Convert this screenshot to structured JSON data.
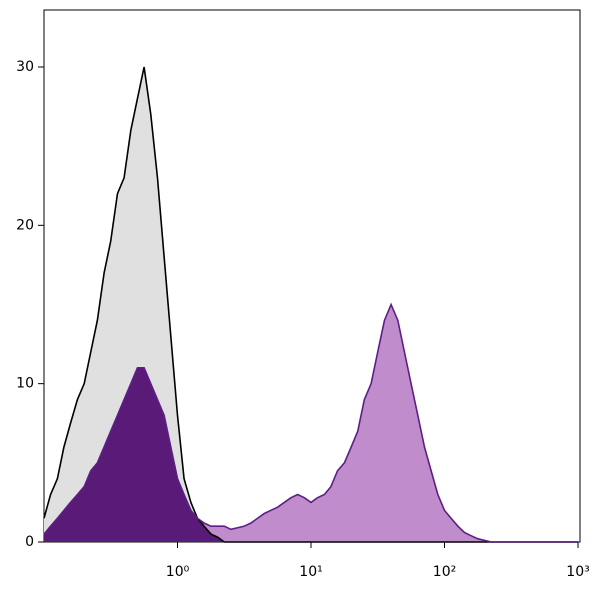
{
  "chart_data": {
    "type": "histogram-overlay",
    "xscale": "log",
    "x": [
      0.1,
      0.112,
      0.126,
      0.141,
      0.158,
      0.178,
      0.2,
      0.224,
      0.251,
      0.282,
      0.316,
      0.355,
      0.398,
      0.447,
      0.501,
      0.562,
      0.631,
      0.708,
      0.794,
      0.891,
      1,
      1.12,
      1.26,
      1.41,
      1.58,
      1.78,
      2,
      2.24,
      2.51,
      2.82,
      3.16,
      3.55,
      3.98,
      4.47,
      5.01,
      5.62,
      6.31,
      7.08,
      7.94,
      8.91,
      10,
      11.2,
      12.6,
      14.1,
      15.8,
      17.8,
      20,
      22.4,
      25.1,
      28.2,
      31.6,
      35.5,
      39.8,
      44.7,
      50.1,
      56.2,
      63.1,
      70.8,
      79.4,
      89.1,
      100,
      112,
      126,
      141,
      158,
      178,
      200,
      224,
      251,
      282,
      316,
      355,
      398,
      447,
      501,
      562,
      631,
      708,
      794,
      891,
      1000
    ],
    "series": [
      {
        "color": "#000000",
        "fill": "#e0e0e0",
        "values": [
          1.5,
          3,
          4,
          6,
          7.5,
          9,
          10,
          12,
          14,
          17,
          19,
          22,
          23,
          26,
          28,
          30,
          27,
          23,
          18,
          13,
          8,
          4,
          2.5,
          1.5,
          1,
          0.5,
          0.3,
          0,
          0,
          0,
          0,
          0,
          0,
          0,
          0,
          0,
          0,
          0,
          0,
          0,
          0,
          0,
          0,
          0,
          0,
          0,
          0,
          0,
          0,
          0,
          0,
          0,
          0,
          0,
          0,
          0,
          0,
          0,
          0,
          0,
          0,
          0,
          0,
          0,
          0,
          0,
          0,
          0,
          0,
          0,
          0,
          0,
          0,
          0,
          0,
          0,
          0,
          0,
          0,
          0,
          0
        ]
      },
      {
        "color": "#5b1f86",
        "fill": "#c08ccb",
        "overlap_fill": "#5a1a78",
        "values": [
          0.5,
          1,
          1.5,
          2,
          2.5,
          3,
          3.5,
          4.5,
          5,
          6,
          7,
          8,
          9,
          10,
          11,
          11,
          10,
          9,
          8,
          6,
          4,
          3,
          2,
          1.5,
          1.2,
          1,
          1,
          1,
          0.8,
          0.9,
          1,
          1.2,
          1.5,
          1.8,
          2,
          2.2,
          2.5,
          2.8,
          3,
          2.8,
          2.5,
          2.8,
          3,
          3.5,
          4.5,
          5,
          6,
          7,
          9,
          10,
          12,
          14,
          15,
          14,
          12,
          10,
          8,
          6,
          4.5,
          3,
          2,
          1.5,
          1,
          0.6,
          0.4,
          0.2,
          0.1,
          0,
          0,
          0,
          0,
          0,
          0,
          0,
          0,
          0,
          0,
          0,
          0,
          0,
          0
        ]
      }
    ],
    "xlim": [
      0.1,
      1000
    ],
    "xticks": [
      {
        "value": 1,
        "label": "10⁰"
      },
      {
        "value": 10,
        "label": "10¹"
      },
      {
        "value": 100,
        "label": "10²"
      },
      {
        "value": 1000,
        "label": "10³"
      }
    ],
    "ylim": [
      0,
      33.6
    ],
    "yticks": [
      0,
      10,
      20,
      30
    ]
  }
}
